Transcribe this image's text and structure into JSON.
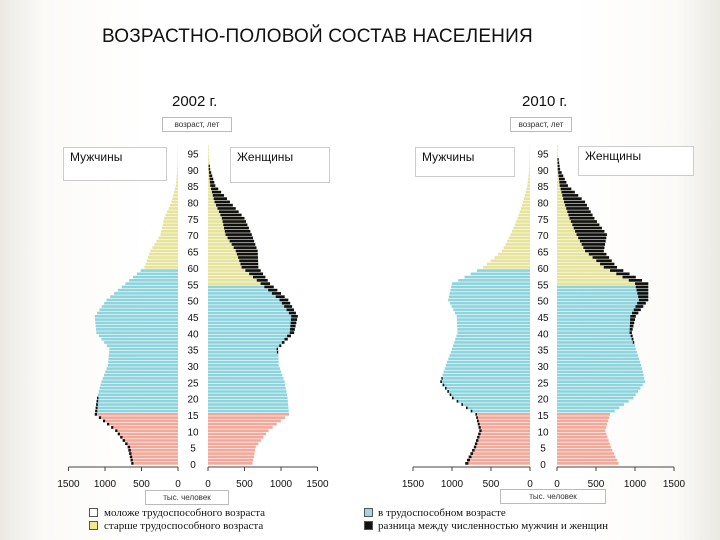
{
  "title": "ВОЗРАСТНО-ПОЛОВОЙ СОСТАВ НАСЕЛЕНИЯ",
  "colors": {
    "young": "#f2a89a",
    "working": "#8ed4dd",
    "old": "#e6e49a",
    "diff": "#111111",
    "young_swatch": "#ffffff",
    "working_swatch": "#9fd6e4",
    "old_swatch": "#eeeb8a",
    "diff_swatch": "#111111"
  },
  "legend": {
    "young": "моложе трудоспособного возраста",
    "old": "старше трудоспособного возраста",
    "working": "в трудоспособном возрасте",
    "diff": "разница между численностью мужчин и женщин"
  },
  "chart_data": [
    {
      "type": "population-pyramid",
      "title": "2002 г.",
      "age_axis_label": "возраст, лет",
      "x_axis_label": "тыс. человек",
      "left_label": "Мужчины",
      "right_label": "Женщины",
      "age_ticks": [
        0,
        5,
        10,
        15,
        20,
        25,
        30,
        35,
        40,
        45,
        50,
        55,
        60,
        65,
        70,
        75,
        80,
        85,
        90,
        95
      ],
      "x_ticks_left": [
        "1500",
        "1000",
        "500",
        "0"
      ],
      "x_ticks_right": [
        "0",
        "500",
        "1000",
        "1500"
      ],
      "x_range": [
        0,
        1500
      ],
      "y_range": [
        0,
        100
      ],
      "working_age": {
        "male": [
          16,
          59
        ],
        "female": [
          16,
          54
        ]
      },
      "age_groups": [
        {
          "age": 0,
          "male": 640,
          "female": 610
        },
        {
          "age": 5,
          "male": 690,
          "female": 655
        },
        {
          "age": 10,
          "male": 860,
          "female": 830
        },
        {
          "age": 15,
          "male": 1140,
          "female": 1110
        },
        {
          "age": 20,
          "male": 1110,
          "female": 1090
        },
        {
          "age": 25,
          "male": 1050,
          "female": 1050
        },
        {
          "age": 30,
          "male": 960,
          "female": 970
        },
        {
          "age": 35,
          "male": 940,
          "female": 960
        },
        {
          "age": 40,
          "male": 1120,
          "female": 1180
        },
        {
          "age": 45,
          "male": 1140,
          "female": 1230
        },
        {
          "age": 50,
          "male": 980,
          "female": 1100
        },
        {
          "age": 55,
          "male": 720,
          "female": 850
        },
        {
          "age": 60,
          "male": 460,
          "female": 690
        },
        {
          "age": 65,
          "male": 380,
          "female": 680
        },
        {
          "age": 70,
          "male": 240,
          "female": 600
        },
        {
          "age": 75,
          "male": 190,
          "female": 500
        },
        {
          "age": 80,
          "male": 90,
          "female": 300
        },
        {
          "age": 85,
          "male": 30,
          "female": 100
        },
        {
          "age": 90,
          "male": 10,
          "female": 30
        },
        {
          "age": 95,
          "male": 3,
          "female": 10
        }
      ]
    },
    {
      "type": "population-pyramid",
      "title": "2010 г.",
      "age_axis_label": "возраст, лет",
      "x_axis_label": "тыс. человек",
      "left_label": "Мужчины",
      "right_label": "Женщины",
      "age_ticks": [
        0,
        5,
        10,
        15,
        20,
        25,
        30,
        35,
        40,
        45,
        50,
        55,
        60,
        65,
        70,
        75,
        80,
        85,
        90,
        95
      ],
      "x_ticks_left": [
        "1500",
        "1000",
        "500",
        "0"
      ],
      "x_ticks_right": [
        "0",
        "500",
        "1000",
        "1500"
      ],
      "x_range": [
        0,
        1500
      ],
      "y_range": [
        0,
        100
      ],
      "working_age": {
        "male": [
          16,
          59
        ],
        "female": [
          16,
          54
        ]
      },
      "age_groups": [
        {
          "age": 0,
          "male": 830,
          "female": 790
        },
        {
          "age": 5,
          "male": 720,
          "female": 690
        },
        {
          "age": 10,
          "male": 650,
          "female": 620
        },
        {
          "age": 15,
          "male": 700,
          "female": 680
        },
        {
          "age": 20,
          "male": 1000,
          "female": 980
        },
        {
          "age": 25,
          "male": 1150,
          "female": 1130
        },
        {
          "age": 30,
          "male": 1080,
          "female": 1080
        },
        {
          "age": 35,
          "male": 1000,
          "female": 1010
        },
        {
          "age": 40,
          "male": 930,
          "female": 960
        },
        {
          "age": 45,
          "male": 940,
          "female": 1010
        },
        {
          "age": 50,
          "male": 1050,
          "female": 1170
        },
        {
          "age": 55,
          "male": 1000,
          "female": 1170
        },
        {
          "age": 60,
          "male": 600,
          "female": 770
        },
        {
          "age": 65,
          "male": 360,
          "female": 600
        },
        {
          "age": 70,
          "male": 250,
          "female": 640
        },
        {
          "age": 75,
          "male": 160,
          "female": 480
        },
        {
          "age": 80,
          "male": 90,
          "female": 360
        },
        {
          "age": 85,
          "male": 35,
          "female": 140
        },
        {
          "age": 90,
          "male": 10,
          "female": 40
        },
        {
          "age": 95,
          "male": 3,
          "female": 10
        }
      ]
    }
  ]
}
